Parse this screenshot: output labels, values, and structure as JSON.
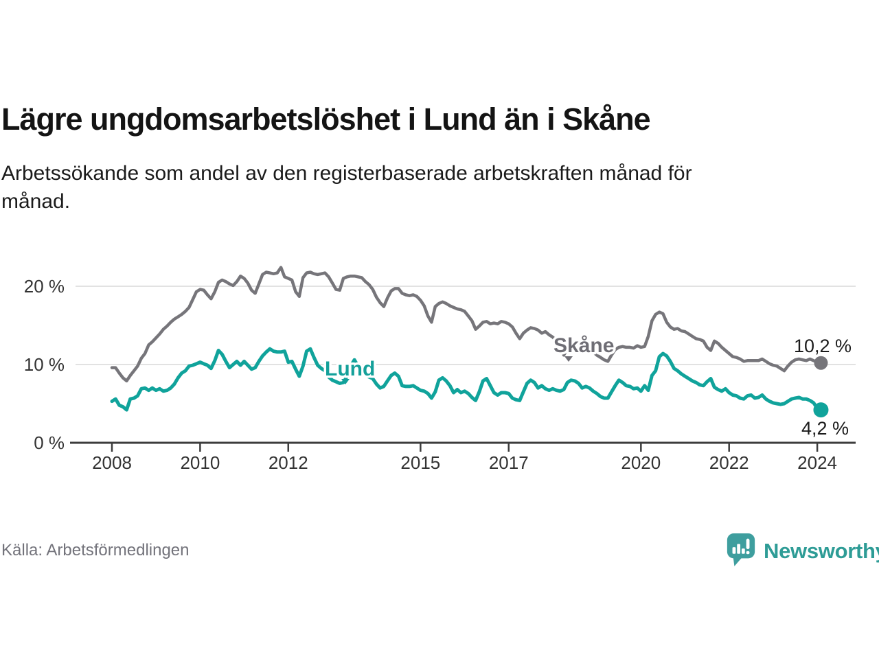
{
  "header": {
    "title": "Lägre ungdomsarbetslöshet i Lund än i Skåne",
    "subtitle": "Arbetssökande som andel av den registerbaserade arbetskraften månad för månad."
  },
  "footer": {
    "source": "Källa: Arbetsförmedlingen",
    "logo_text": "Newsworthy"
  },
  "colors": {
    "skane_line": "#76757a",
    "skane_label": "#6f6e75",
    "lund_line": "#10a39b",
    "lund_label": "#14a09a",
    "grid": "#d9d9d9",
    "axis": "#3d3d3d",
    "tick_text": "#333333",
    "end_label_text": "#1c1c1c",
    "source_text": "#73737b",
    "logo_teal": "#3e9e9e",
    "logo_text_teal": "#2e9c96"
  },
  "chart_data": {
    "type": "line",
    "title": "Lägre ungdomsarbetslöshet i Lund än i Skåne",
    "xlabel": "",
    "ylabel": "",
    "ylim": [
      0,
      24
    ],
    "grid": "horizontal",
    "frequency": "monthly",
    "start": "2008-01",
    "end": "2024-02",
    "yticks": [
      {
        "value": 20,
        "label": "20 %"
      },
      {
        "value": 10,
        "label": "10 %"
      },
      {
        "value": 0,
        "label": "0 %"
      }
    ],
    "xticks": [
      {
        "year": 2008,
        "label": "2008"
      },
      {
        "year": 2010,
        "label": "2010"
      },
      {
        "year": 2012,
        "label": "2012"
      },
      {
        "year": 2015,
        "label": "2015"
      },
      {
        "year": 2017,
        "label": "2017"
      },
      {
        "year": 2020,
        "label": "2020"
      },
      {
        "year": 2022,
        "label": "2022"
      },
      {
        "year": 2024,
        "label": "2024"
      }
    ],
    "series": [
      {
        "name": "Skåne",
        "label": "Skåne",
        "end_label": "10,2 %",
        "end_value": 10.2,
        "values": [
          9.6,
          9.6,
          8.9,
          8.3,
          7.9,
          8.6,
          9.2,
          9.8,
          10.8,
          11.4,
          12.5,
          12.9,
          13.4,
          13.9,
          14.5,
          14.9,
          15.4,
          15.8,
          16.1,
          16.4,
          16.8,
          17.3,
          18.3,
          19.3,
          19.6,
          19.5,
          18.9,
          18.4,
          19.3,
          20.5,
          20.8,
          20.6,
          20.3,
          20.1,
          20.6,
          21.3,
          21.0,
          20.4,
          19.5,
          19.1,
          20.3,
          21.5,
          21.8,
          21.7,
          21.6,
          21.7,
          22.4,
          21.2,
          21.0,
          20.8,
          19.3,
          18.7,
          21.1,
          21.7,
          21.8,
          21.6,
          21.5,
          21.6,
          21.7,
          21.2,
          20.4,
          19.6,
          19.5,
          21.0,
          21.2,
          21.3,
          21.3,
          21.2,
          21.1,
          20.6,
          20.2,
          19.6,
          18.6,
          17.9,
          17.4,
          18.5,
          19.4,
          19.7,
          19.7,
          19.1,
          18.9,
          18.8,
          18.9,
          18.7,
          18.2,
          17.5,
          16.2,
          15.4,
          17.4,
          17.8,
          18.0,
          17.8,
          17.5,
          17.3,
          17.1,
          17.0,
          16.8,
          16.2,
          15.6,
          14.5,
          14.9,
          15.4,
          15.5,
          15.2,
          15.3,
          15.2,
          15.5,
          15.4,
          15.2,
          14.8,
          14.0,
          13.3,
          14.0,
          14.4,
          14.7,
          14.6,
          14.4,
          14.0,
          14.2,
          13.8,
          13.5,
          13.0,
          12.4,
          11.2,
          12.0,
          12.6,
          12.8,
          12.5,
          12.2,
          12.0,
          11.8,
          11.6,
          11.2,
          10.9,
          10.6,
          10.4,
          11.2,
          11.9,
          12.2,
          12.3,
          12.2,
          12.2,
          12.1,
          12.4,
          12.2,
          12.3,
          13.6,
          15.6,
          16.4,
          16.7,
          16.5,
          15.4,
          14.8,
          14.5,
          14.6,
          14.3,
          14.2,
          13.9,
          13.6,
          13.3,
          13.2,
          13.0,
          12.2,
          11.8,
          13.0,
          12.7,
          12.2,
          11.8,
          11.4,
          11.0,
          10.9,
          10.7,
          10.4,
          10.5,
          10.5,
          10.5,
          10.5,
          10.7,
          10.4,
          10.1,
          9.9,
          9.8,
          9.5,
          9.2,
          9.8,
          10.3,
          10.6,
          10.7,
          10.6,
          10.5,
          10.7,
          10.5,
          10.3,
          10.2
        ]
      },
      {
        "name": "Lund",
        "label": "Lund",
        "end_label": "4,2 %",
        "end_value": 4.2,
        "values": [
          5.3,
          5.6,
          4.8,
          4.6,
          4.2,
          5.6,
          5.7,
          6.0,
          6.9,
          7.0,
          6.7,
          7.0,
          6.7,
          6.9,
          6.6,
          6.7,
          7.0,
          7.5,
          8.3,
          8.9,
          9.2,
          9.8,
          9.9,
          10.1,
          10.3,
          10.1,
          9.9,
          9.5,
          10.5,
          11.8,
          11.3,
          10.4,
          9.6,
          10.0,
          10.4,
          9.9,
          10.4,
          9.9,
          9.4,
          9.6,
          10.4,
          11.1,
          11.6,
          12.0,
          11.7,
          11.6,
          11.6,
          11.7,
          10.3,
          10.4,
          9.4,
          8.5,
          9.8,
          11.7,
          12.0,
          10.9,
          9.9,
          9.5,
          9.2,
          8.4,
          8.0,
          7.8,
          7.6,
          7.7,
          8.5,
          9.8,
          10.6,
          9.8,
          9.0,
          8.6,
          8.4,
          8.2,
          7.5,
          7.0,
          7.2,
          7.9,
          8.6,
          8.9,
          8.5,
          7.3,
          7.2,
          7.2,
          7.3,
          7.0,
          6.7,
          6.6,
          6.3,
          5.7,
          6.5,
          8.0,
          8.3,
          7.9,
          7.3,
          6.4,
          6.8,
          6.4,
          6.6,
          6.3,
          5.8,
          5.4,
          6.5,
          7.9,
          8.2,
          7.3,
          6.4,
          6.1,
          6.4,
          6.4,
          6.3,
          5.7,
          5.5,
          5.4,
          6.5,
          7.6,
          8.0,
          7.7,
          7.0,
          7.3,
          6.9,
          6.7,
          6.9,
          6.7,
          6.6,
          6.8,
          7.7,
          8.0,
          7.9,
          7.6,
          7.0,
          7.2,
          7.0,
          6.6,
          6.3,
          5.9,
          5.7,
          5.7,
          6.5,
          7.3,
          8.0,
          7.7,
          7.3,
          7.2,
          6.9,
          7.0,
          6.6,
          7.3,
          6.7,
          8.6,
          9.2,
          11.0,
          11.4,
          11.1,
          10.4,
          9.5,
          9.2,
          8.8,
          8.5,
          8.2,
          7.9,
          7.7,
          7.4,
          7.3,
          7.8,
          8.2,
          7.1,
          6.8,
          6.6,
          6.9,
          6.4,
          6.1,
          6.0,
          5.7,
          5.6,
          6.0,
          6.1,
          5.7,
          5.8,
          6.1,
          5.6,
          5.3,
          5.1,
          5.0,
          4.9,
          5.0,
          5.3,
          5.6,
          5.7,
          5.8,
          5.6,
          5.6,
          5.4,
          5.1,
          4.4,
          4.2
        ]
      }
    ]
  }
}
